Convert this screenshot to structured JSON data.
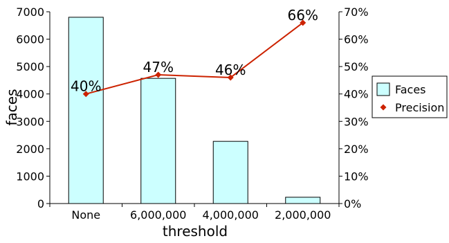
{
  "chart_data": {
    "type": "bar",
    "categories": [
      "None",
      "6,000,000",
      "4,000,000",
      "2,000,000"
    ],
    "series": [
      {
        "name": "Faces",
        "type": "bar",
        "axis": "left",
        "values": [
          6800,
          4570,
          2270,
          230
        ],
        "color": "#ccffff",
        "stroke": "#000000"
      },
      {
        "name": "Precision",
        "type": "line",
        "axis": "right",
        "values": [
          40,
          47,
          46,
          66
        ],
        "labels": [
          "40%",
          "47%",
          "46%",
          "66%"
        ],
        "color": "#cc2200",
        "marker": "diamond"
      }
    ],
    "xlabel": "threshold",
    "ylabel": "faces",
    "ylim": [
      0,
      7000
    ],
    "y_ticks": [
      "0",
      "1000",
      "2000",
      "3000",
      "4000",
      "5000",
      "6000",
      "7000"
    ],
    "y2lim": [
      0,
      70
    ],
    "y2_ticks": [
      "0%",
      "10%",
      "20%",
      "30%",
      "40%",
      "50%",
      "60%",
      "70%"
    ],
    "legend_position": "right",
    "grid": false
  }
}
